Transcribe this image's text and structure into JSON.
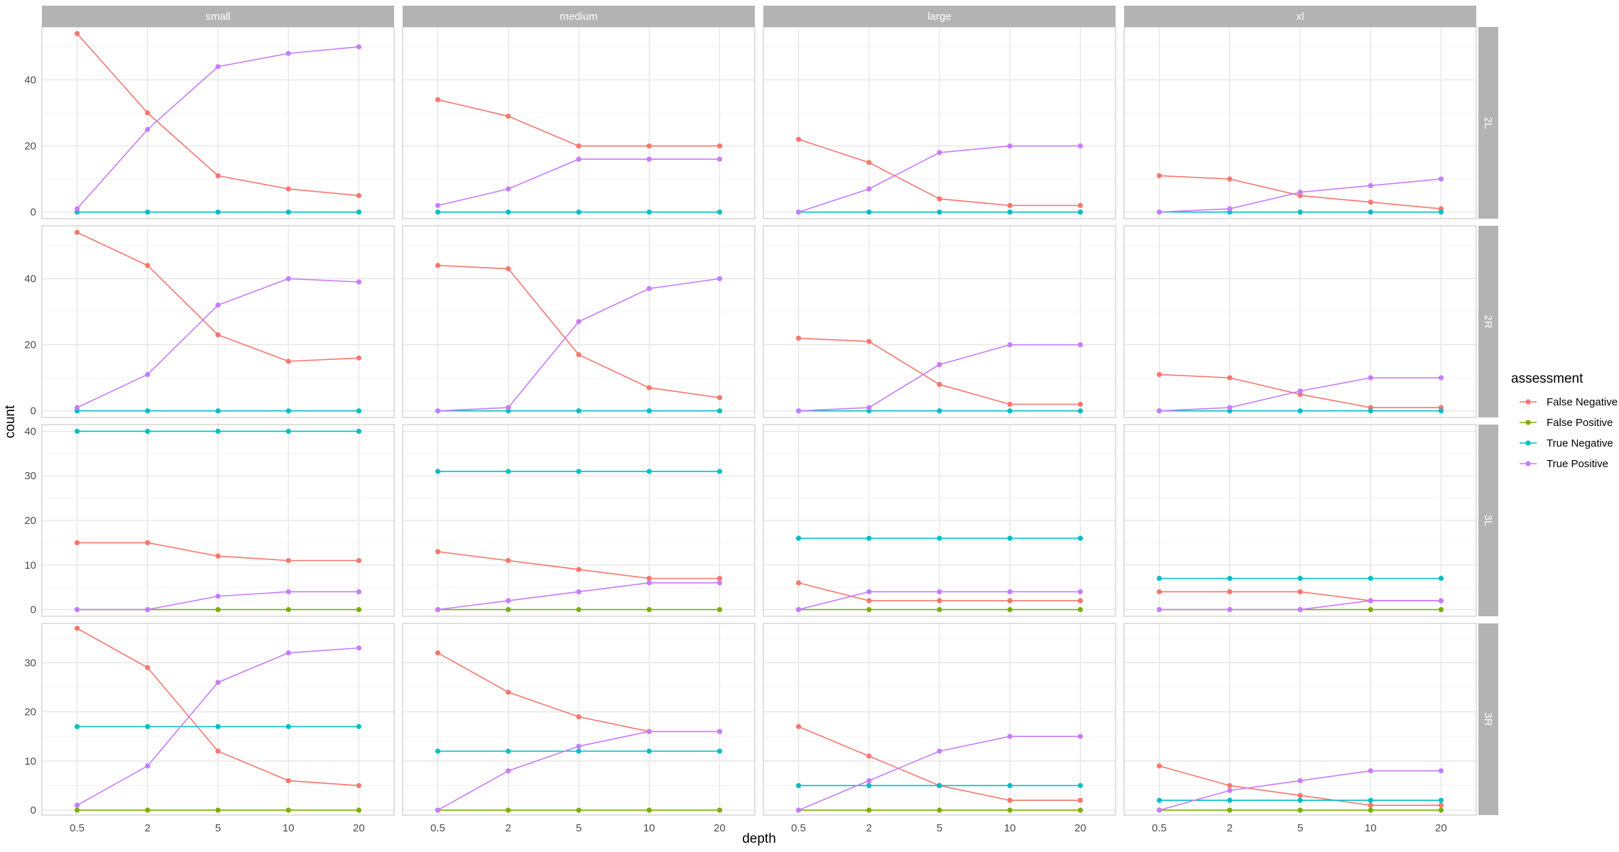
{
  "chart_data": {
    "type": "line",
    "facet_columns": [
      "small",
      "medium",
      "large",
      "xl"
    ],
    "facet_rows": [
      "2L",
      "2R",
      "3L",
      "3R"
    ],
    "x": [
      "0.5",
      "2",
      "5",
      "10",
      "20"
    ],
    "xlabel": "depth",
    "ylabel": "count",
    "legend_title": "assessment",
    "legend_position": "right",
    "grid": true,
    "scales": "free_y",
    "row_ylim": {
      "2L": [
        -2,
        56
      ],
      "2R": [
        -2,
        56
      ],
      "3L": [
        -1.5,
        41.5
      ],
      "3R": [
        -1,
        38
      ]
    },
    "row_yticks": {
      "2L": [
        0,
        20,
        40
      ],
      "2R": [
        0,
        20,
        40
      ],
      "3L": [
        0,
        10,
        20,
        30,
        40
      ],
      "3R": [
        0,
        10,
        20,
        30
      ]
    },
    "series": [
      {
        "name": "False Negative",
        "color": "#F8766D"
      },
      {
        "name": "False Positive",
        "color": "#7CAE00"
      },
      {
        "name": "True Negative",
        "color": "#00BFC4"
      },
      {
        "name": "True Positive",
        "color": "#C77CFF"
      }
    ],
    "panels": {
      "2L": {
        "small": {
          "False Negative": [
            54,
            30,
            11,
            7,
            5
          ],
          "True Negative": [
            0,
            0,
            0,
            0,
            0
          ],
          "True Positive": [
            1,
            25,
            44,
            48,
            50
          ]
        },
        "medium": {
          "False Negative": [
            34,
            29,
            20,
            20,
            20
          ],
          "True Negative": [
            0,
            0,
            0,
            0,
            0
          ],
          "True Positive": [
            2,
            7,
            16,
            16,
            16
          ]
        },
        "large": {
          "False Negative": [
            22,
            15,
            4,
            2,
            2
          ],
          "True Negative": [
            0,
            0,
            0,
            0,
            0
          ],
          "True Positive": [
            0,
            7,
            18,
            20,
            20
          ]
        },
        "xl": {
          "False Negative": [
            11,
            10,
            5,
            3,
            1
          ],
          "True Negative": [
            0,
            0,
            0,
            0,
            0
          ],
          "True Positive": [
            0,
            1,
            6,
            8,
            10
          ]
        }
      },
      "2R": {
        "small": {
          "False Negative": [
            54,
            44,
            23,
            15,
            16
          ],
          "True Negative": [
            0,
            0,
            0,
            0,
            0
          ],
          "True Positive": [
            1,
            11,
            32,
            40,
            39
          ]
        },
        "medium": {
          "False Negative": [
            44,
            43,
            17,
            7,
            4
          ],
          "True Negative": [
            0,
            0,
            0,
            0,
            0
          ],
          "True Positive": [
            0,
            1,
            27,
            37,
            40
          ]
        },
        "large": {
          "False Negative": [
            22,
            21,
            8,
            2,
            2
          ],
          "True Negative": [
            0,
            0,
            0,
            0,
            0
          ],
          "True Positive": [
            0,
            1,
            14,
            20,
            20
          ]
        },
        "xl": {
          "False Negative": [
            11,
            10,
            5,
            1,
            1
          ],
          "True Negative": [
            0,
            0,
            0,
            0,
            0
          ],
          "True Positive": [
            0,
            1,
            6,
            10,
            10
          ]
        }
      },
      "3L": {
        "small": {
          "False Negative": [
            15,
            15,
            12,
            11,
            11
          ],
          "False Positive": [
            0,
            0,
            0,
            0,
            0
          ],
          "True Negative": [
            40,
            40,
            40,
            40,
            40
          ],
          "True Positive": [
            0,
            0,
            3,
            4,
            4
          ]
        },
        "medium": {
          "False Negative": [
            13,
            11,
            9,
            7,
            7
          ],
          "False Positive": [
            0,
            0,
            0,
            0,
            0
          ],
          "True Negative": [
            31,
            31,
            31,
            31,
            31
          ],
          "True Positive": [
            0,
            2,
            4,
            6,
            6
          ]
        },
        "large": {
          "False Negative": [
            6,
            2,
            2,
            2,
            2
          ],
          "False Positive": [
            0,
            0,
            0,
            0,
            0
          ],
          "True Negative": [
            16,
            16,
            16,
            16,
            16
          ],
          "True Positive": [
            0,
            4,
            4,
            4,
            4
          ]
        },
        "xl": {
          "False Negative": [
            4,
            4,
            4,
            2,
            2
          ],
          "False Positive": [
            0,
            0,
            0,
            0,
            0
          ],
          "True Negative": [
            7,
            7,
            7,
            7,
            7
          ],
          "True Positive": [
            0,
            0,
            0,
            2,
            2
          ]
        }
      },
      "3R": {
        "small": {
          "False Negative": [
            37,
            29,
            12,
            6,
            5
          ],
          "False Positive": [
            0,
            0,
            0,
            0,
            0
          ],
          "True Negative": [
            17,
            17,
            17,
            17,
            17
          ],
          "True Positive": [
            1,
            9,
            26,
            32,
            33
          ]
        },
        "medium": {
          "False Negative": [
            32,
            24,
            19,
            16,
            16
          ],
          "False Positive": [
            0,
            0,
            0,
            0,
            0
          ],
          "True Negative": [
            12,
            12,
            12,
            12,
            12
          ],
          "True Positive": [
            0,
            8,
            13,
            16,
            16
          ]
        },
        "large": {
          "False Negative": [
            17,
            11,
            5,
            2,
            2
          ],
          "False Positive": [
            0,
            0,
            0,
            0,
            0
          ],
          "True Negative": [
            5,
            5,
            5,
            5,
            5
          ],
          "True Positive": [
            0,
            6,
            12,
            15,
            15
          ]
        },
        "xl": {
          "False Negative": [
            9,
            5,
            3,
            1,
            1
          ],
          "False Positive": [
            0,
            0,
            0,
            0,
            0
          ],
          "True Negative": [
            2,
            2,
            2,
            2,
            2
          ],
          "True Positive": [
            0,
            4,
            6,
            8,
            8
          ]
        }
      }
    }
  }
}
